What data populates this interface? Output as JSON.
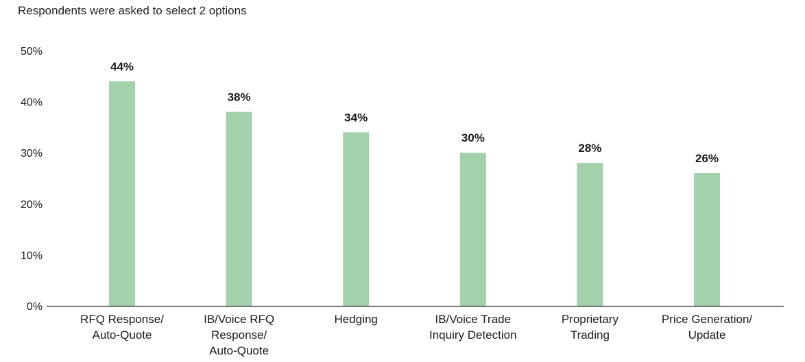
{
  "subtitle": "Respondents were asked to select 2 options",
  "colors": {
    "bar": "#a3d1ab",
    "axis": "#333333",
    "text": "#1a1a1a"
  },
  "chart_data": {
    "type": "bar",
    "title": "",
    "xlabel": "",
    "ylabel": "",
    "ylim": [
      0,
      50
    ],
    "yticks": [
      0,
      10,
      20,
      30,
      40,
      50
    ],
    "ytick_labels": [
      "0%",
      "10%",
      "20%",
      "30%",
      "40%",
      "50%"
    ],
    "grid": false,
    "legend": "none",
    "categories": [
      [
        "RFQ Response/",
        "Auto-Quote"
      ],
      [
        "IB/Voice RFQ",
        "Response/",
        "Auto-Quote"
      ],
      [
        "Hedging"
      ],
      [
        "IB/Voice Trade",
        "Inquiry Detection"
      ],
      [
        "Proprietary",
        "Trading"
      ],
      [
        "Price Generation/",
        "Update"
      ]
    ],
    "values": [
      44,
      38,
      34,
      30,
      28,
      26
    ],
    "data_labels": [
      "44%",
      "38%",
      "34%",
      "30%",
      "28%",
      "26%"
    ]
  }
}
